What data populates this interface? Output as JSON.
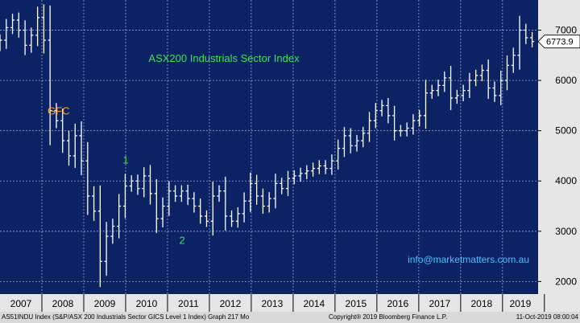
{
  "colors": {
    "plot_bg": "#0b2265",
    "grid": "#9aa6c8",
    "bars": "#ffffff",
    "title": "#44e05a",
    "gfc": "#ff9f2b",
    "markers": "#44e05a",
    "contact": "#3fc6ff",
    "axis_bg": "#e6e6e6",
    "footer_bg": "#d9d9d9"
  },
  "chart_data": {
    "type": "ohlc",
    "title": "ASX200 Industrials Sector Index",
    "xlabel": "",
    "ylabel": "",
    "x_tick_labels": [
      "2007",
      "2008",
      "2009",
      "2010",
      "2011",
      "2012",
      "2013",
      "2014",
      "2015",
      "2016",
      "2017",
      "2018",
      "2019"
    ],
    "y_tick_labels": [
      "2000",
      "3000",
      "4000",
      "5000",
      "6000",
      "7000"
    ],
    "ylim": [
      1750,
      7600
    ],
    "xlim": [
      2007.0,
      2019.85
    ],
    "grid": true,
    "last_price_label": "6773.9",
    "last_price": 6773.9,
    "annotations": [
      {
        "text": "GFC",
        "x": 2008.4,
        "y": 5320
      },
      {
        "text": "1",
        "x": 2010.0,
        "y": 4350
      },
      {
        "text": "2",
        "x": 2011.35,
        "y": 2750
      }
    ],
    "watermark": "info@marketmatters.com.au",
    "series": [
      {
        "key": [
          6800,
          7050,
          7200,
          7000,
          6700,
          6900,
          7250,
          6800,
          5400,
          5200,
          4800,
          4500,
          4900,
          4400,
          3700,
          3400,
          2400,
          2900,
          3100,
          3500,
          3900,
          4000,
          3850,
          4100,
          3750,
          3250,
          3500,
          3800,
          3700,
          3800,
          3650,
          3500,
          3300,
          3200,
          3700,
          3800,
          3300,
          3200,
          3350,
          3600,
          3950,
          3700,
          3500,
          3650,
          3950,
          3850,
          4050,
          4100,
          4150,
          4200,
          4250,
          4300,
          4250,
          4400,
          4650,
          4900,
          4700,
          4800,
          4950,
          5200,
          5400,
          5500,
          5300,
          5000,
          5000,
          5050,
          5200,
          5300,
          5750,
          5800,
          5900,
          6050,
          5650,
          5700,
          5800,
          6000,
          6100,
          6200,
          5850,
          5700,
          6000,
          6300,
          6500,
          7000,
          6850,
          6773.9
        ],
        "x_start": 2007.0,
        "x_step": 0.1495
      }
    ]
  },
  "footer": {
    "left": "AS51INDU Index (S&P/ASX 200 Industrials Sector GICS Level 1 Index) Graph 217  Mo",
    "middle": "Copyright® 2019 Bloomberg Finance L.P.",
    "right": "11-Oct-2019 08:00:04"
  }
}
